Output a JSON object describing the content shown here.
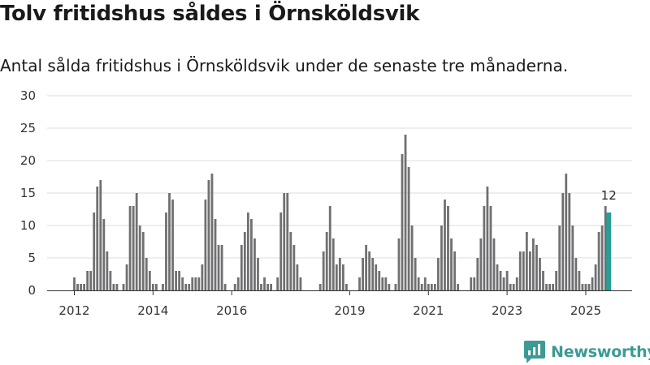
{
  "header": {
    "title": "Tolv fritidshus såldes i Örnsköldsvik",
    "subtitle": "Antal sålda fritidshus i Örnsköldsvik under de senaste tre månaderna."
  },
  "brand": {
    "name": "Newsworthy",
    "color": "#3b9b93"
  },
  "chart_data": {
    "type": "bar",
    "ylim": [
      0,
      30
    ],
    "yticks": [
      0,
      5,
      10,
      15,
      20,
      25,
      30
    ],
    "xtick_labels": [
      "2012",
      "2014",
      "2016",
      "2019",
      "2021",
      "2023",
      "2025"
    ],
    "grid": true,
    "bar_color": "#707072",
    "highlight_color": "#2a9d96",
    "highlight_label": "12",
    "values": [
      2,
      1,
      1,
      1,
      3,
      3,
      12,
      16,
      17,
      11,
      6,
      3,
      1,
      1,
      null,
      1,
      4,
      13,
      13,
      15,
      10,
      9,
      5,
      3,
      1,
      1,
      null,
      1,
      12,
      15,
      14,
      3,
      3,
      2,
      1,
      1,
      2,
      2,
      2,
      4,
      14,
      17,
      18,
      11,
      7,
      7,
      1,
      null,
      null,
      1,
      2,
      7,
      9,
      12,
      11,
      8,
      5,
      1,
      2,
      1,
      1,
      null,
      2,
      12,
      15,
      15,
      9,
      7,
      4,
      2,
      null,
      null,
      null,
      null,
      null,
      1,
      6,
      9,
      13,
      8,
      4,
      5,
      4,
      1,
      null,
      null,
      null,
      2,
      5,
      7,
      6,
      5,
      4,
      3,
      2,
      2,
      1,
      null,
      1,
      8,
      21,
      24,
      19,
      10,
      5,
      2,
      1,
      2,
      1,
      1,
      1,
      5,
      10,
      14,
      13,
      8,
      6,
      1,
      null,
      null,
      null,
      2,
      2,
      5,
      8,
      13,
      16,
      13,
      8,
      4,
      3,
      2,
      3,
      1,
      1,
      2,
      6,
      6,
      9,
      6,
      8,
      7,
      5,
      3,
      1,
      1,
      1,
      3,
      10,
      15,
      18,
      15,
      10,
      5,
      3,
      1,
      1,
      1,
      2,
      4,
      9,
      10,
      13,
      12
    ]
  }
}
